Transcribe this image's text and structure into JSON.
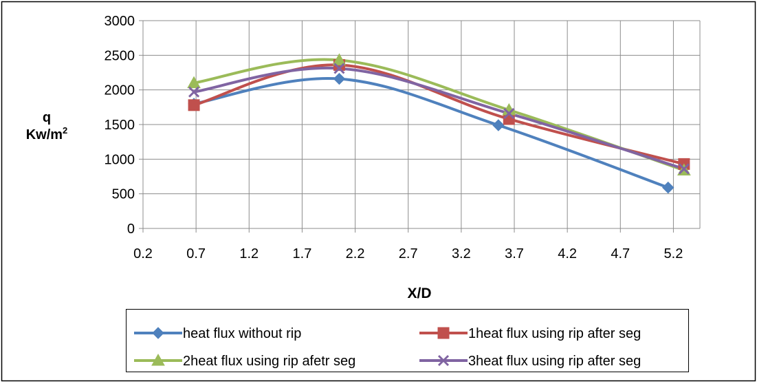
{
  "chart_data": {
    "type": "line",
    "title": "",
    "ylabel_line1": "q",
    "ylabel_line2": "Kw/m",
    "ylabel_sup": "2",
    "xlabel": "X/D",
    "xlim": [
      0.2,
      5.45
    ],
    "ylim": [
      0,
      3000
    ],
    "x_ticks": [
      "0.2",
      "0.7",
      "1.2",
      "1.7",
      "2.2",
      "2.7",
      "3.2",
      "3.7",
      "4.2",
      "4.7",
      "5.2"
    ],
    "y_ticks": [
      "0",
      "500",
      "1000",
      "1500",
      "2000",
      "2500",
      "3000"
    ],
    "grid": true,
    "legend_position": "bottom",
    "series": [
      {
        "name": "heat flux without rip",
        "color": "#4F81BD",
        "marker": "diamond",
        "x": [
          0.68,
          2.05,
          3.55,
          5.15
        ],
        "values": [
          1800,
          2160,
          1490,
          590
        ]
      },
      {
        "name": "1heat flux using rip after seg",
        "color": "#C0504D",
        "marker": "square",
        "x": [
          0.68,
          2.05,
          3.65,
          5.3
        ],
        "values": [
          1780,
          2360,
          1580,
          930
        ]
      },
      {
        "name": "2heat flux using rip afetr seg",
        "color": "#9BBB59",
        "marker": "triangle",
        "x": [
          0.68,
          2.05,
          3.65,
          5.3
        ],
        "values": [
          2100,
          2430,
          1710,
          840
        ]
      },
      {
        "name": "3heat flux using rip after seg",
        "color": "#8064A2",
        "marker": "x",
        "x": [
          0.68,
          2.05,
          3.65,
          5.3
        ],
        "values": [
          1970,
          2310,
          1660,
          860
        ]
      }
    ]
  }
}
